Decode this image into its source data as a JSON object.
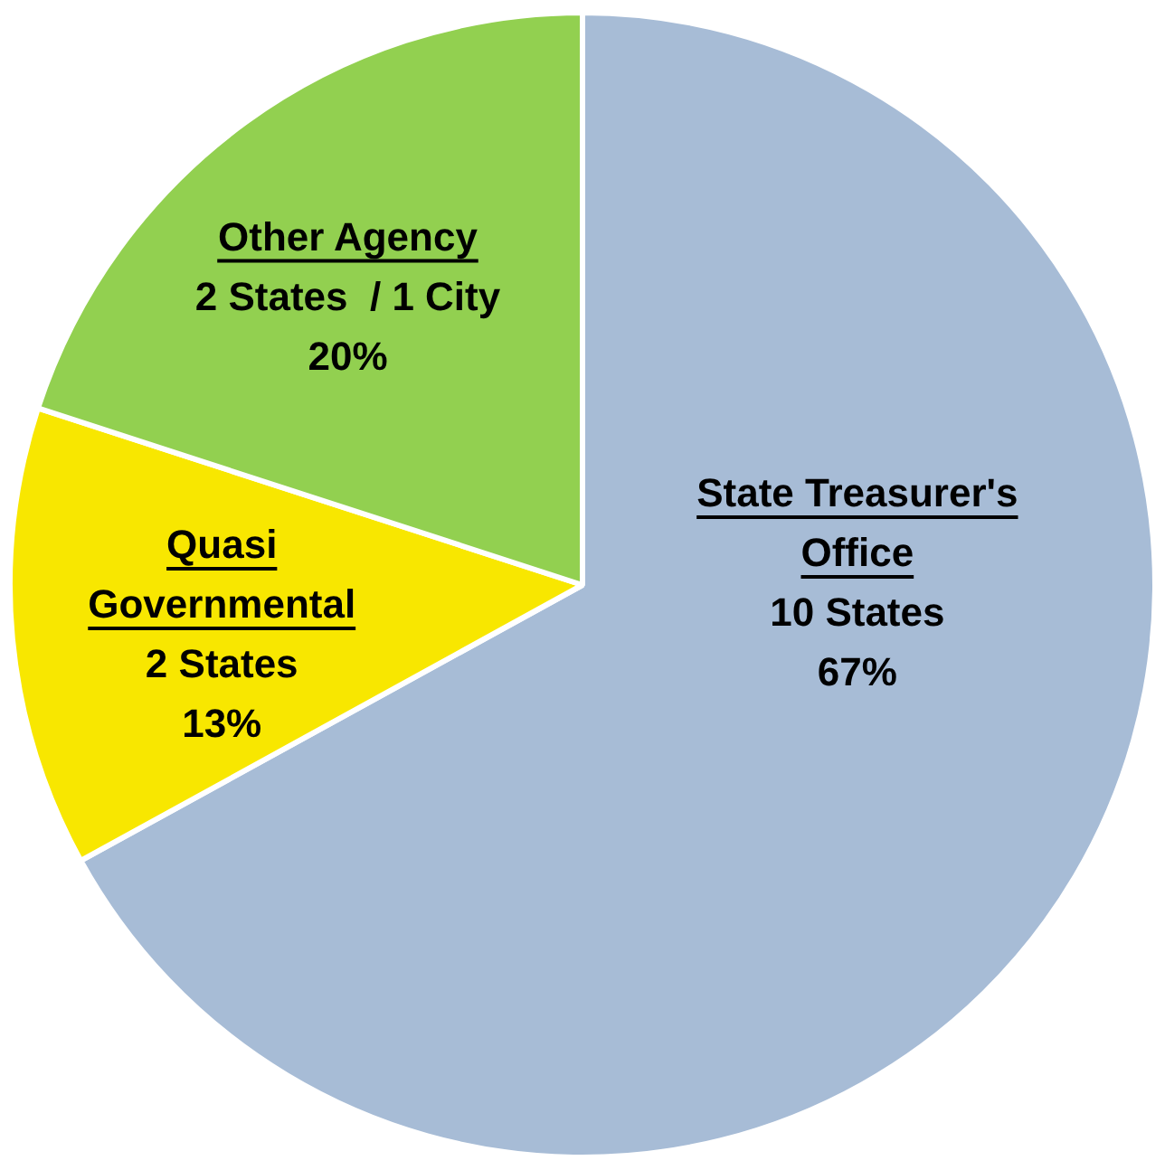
{
  "chart_data": {
    "type": "pie",
    "categories": [
      "State Treasurer's Office",
      "Quasi Governmental",
      "Other Agency"
    ],
    "values": [
      67,
      13,
      20
    ],
    "colors": [
      "#a7bcd6",
      "#f8e700",
      "#92d050"
    ],
    "value_labels": [
      "67%",
      "13%",
      "20%"
    ],
    "annotations": [
      {
        "text": "10 States",
        "x": "State Treasurer's Office"
      },
      {
        "text": "2 States",
        "x": "Quasi Governmental"
      },
      {
        "text": "2 States  / 1 City",
        "x": "Other Agency"
      }
    ],
    "legend": false
  }
}
